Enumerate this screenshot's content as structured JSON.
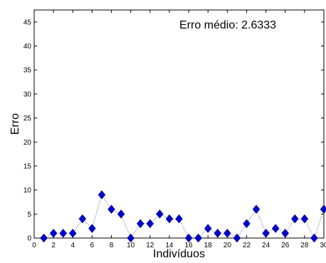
{
  "chart_data": {
    "type": "scatter",
    "x": [
      1,
      2,
      3,
      4,
      5,
      6,
      7,
      8,
      9,
      10,
      11,
      12,
      13,
      14,
      15,
      16,
      17,
      18,
      19,
      20,
      21,
      22,
      23,
      24,
      25,
      26,
      27,
      28,
      29,
      30
    ],
    "series": [
      {
        "values": [
          0,
          1,
          1,
          1,
          4,
          2,
          9,
          6,
          5,
          0,
          3,
          3,
          5,
          4,
          4,
          0,
          0,
          2,
          1,
          1,
          0,
          3,
          6,
          1,
          2,
          1,
          4,
          4,
          0,
          6
        ],
        "color": "#0000cc",
        "marker": "diamond",
        "line_style": "dotted",
        "line_color": "#555555"
      }
    ],
    "title": "",
    "xlabel": "Indivíduos",
    "ylabel": "Erro",
    "xlim": [
      0,
      30
    ],
    "ylim": [
      0,
      47.5
    ],
    "xticks": [
      "0",
      "2",
      "4",
      "6",
      "8",
      "10",
      "12",
      "14",
      "16",
      "18",
      "20",
      "22",
      "24",
      "26",
      "28",
      "30"
    ],
    "yticks": [
      "0",
      "5",
      "10",
      "15",
      "20",
      "25",
      "30",
      "35",
      "40",
      "45"
    ],
    "grid": false,
    "annotation": "Erro médio: 2.6333"
  }
}
